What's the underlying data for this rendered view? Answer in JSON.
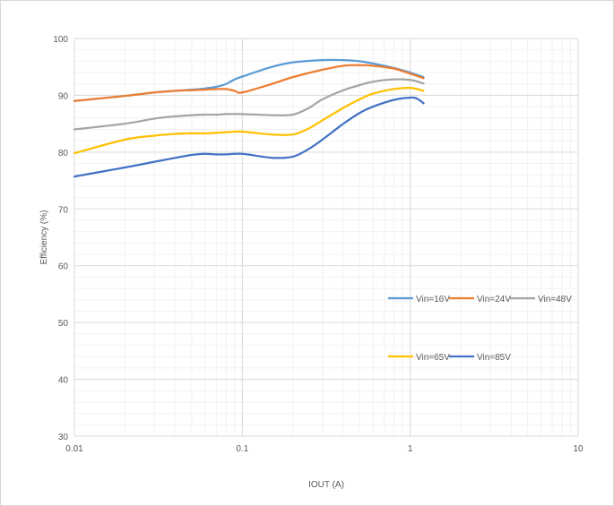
{
  "chart_data": {
    "type": "line",
    "title": "",
    "xlabel": "IOUT (A)",
    "ylabel": "Efficiency (%)",
    "x_scale": "log",
    "xlim": [
      0.01,
      10
    ],
    "ylim": [
      30,
      100
    ],
    "x_ticks": [
      {
        "value": 0.01,
        "label": "0.01"
      },
      {
        "value": 0.1,
        "label": "0.1"
      },
      {
        "value": 1,
        "label": "1"
      },
      {
        "value": 10,
        "label": "10"
      }
    ],
    "y_ticks": [
      {
        "value": 30,
        "label": "30"
      },
      {
        "value": 40,
        "label": "40"
      },
      {
        "value": 50,
        "label": "50"
      },
      {
        "value": 60,
        "label": "60"
      },
      {
        "value": 70,
        "label": "70"
      },
      {
        "value": 80,
        "label": "80"
      },
      {
        "value": 90,
        "label": "90"
      },
      {
        "value": 100,
        "label": "100"
      }
    ],
    "grid": true,
    "legend_position": "right",
    "series": [
      {
        "name": "Vin=16V",
        "color": "#5b9bd5",
        "x": [
          0.01,
          0.02,
          0.03,
          0.04,
          0.05,
          0.06,
          0.07,
          0.08,
          0.09,
          0.1,
          0.15,
          0.2,
          0.3,
          0.4,
          0.5,
          0.6,
          0.8,
          1.0,
          1.2
        ],
        "y": [
          89.0,
          89.9,
          90.5,
          90.8,
          91.0,
          91.2,
          91.5,
          92.0,
          92.8,
          93.3,
          95.0,
          95.8,
          96.2,
          96.2,
          96.0,
          95.6,
          94.8,
          94.0,
          93.2
        ]
      },
      {
        "name": "Vin=24V",
        "color": "#ed7d31",
        "x": [
          0.01,
          0.02,
          0.03,
          0.04,
          0.05,
          0.06,
          0.07,
          0.08,
          0.09,
          0.1,
          0.15,
          0.2,
          0.3,
          0.4,
          0.5,
          0.6,
          0.8,
          1.0,
          1.2
        ],
        "y": [
          89.0,
          89.9,
          90.5,
          90.8,
          90.9,
          91.0,
          91.1,
          91.1,
          90.8,
          90.5,
          92.0,
          93.2,
          94.5,
          95.2,
          95.3,
          95.2,
          94.7,
          93.8,
          93.0
        ]
      },
      {
        "name": "Vin=48V",
        "color": "#a5a5a5",
        "x": [
          0.01,
          0.02,
          0.03,
          0.04,
          0.05,
          0.06,
          0.07,
          0.08,
          0.1,
          0.15,
          0.2,
          0.25,
          0.3,
          0.4,
          0.5,
          0.6,
          0.8,
          1.0,
          1.2
        ],
        "y": [
          84.0,
          85.0,
          85.9,
          86.3,
          86.5,
          86.6,
          86.6,
          86.7,
          86.7,
          86.5,
          86.6,
          87.8,
          89.3,
          90.9,
          91.8,
          92.4,
          92.8,
          92.7,
          92.1
        ]
      },
      {
        "name": "Vin=65V",
        "color": "#ffc000",
        "x": [
          0.01,
          0.02,
          0.03,
          0.04,
          0.05,
          0.06,
          0.07,
          0.08,
          0.1,
          0.15,
          0.2,
          0.25,
          0.3,
          0.4,
          0.5,
          0.6,
          0.8,
          1.0,
          1.2
        ],
        "y": [
          79.8,
          82.2,
          82.9,
          83.2,
          83.3,
          83.3,
          83.4,
          83.5,
          83.6,
          83.1,
          83.1,
          84.2,
          85.6,
          87.8,
          89.3,
          90.3,
          91.1,
          91.3,
          90.8
        ]
      },
      {
        "name": "Vin=85V",
        "color": "#4472c4",
        "x": [
          0.01,
          0.02,
          0.03,
          0.04,
          0.05,
          0.06,
          0.07,
          0.08,
          0.1,
          0.15,
          0.2,
          0.25,
          0.3,
          0.4,
          0.5,
          0.6,
          0.8,
          1.0,
          1.1,
          1.2
        ],
        "y": [
          75.7,
          77.3,
          78.3,
          79.0,
          79.5,
          79.7,
          79.6,
          79.6,
          79.7,
          79.0,
          79.2,
          80.6,
          82.2,
          85.0,
          86.9,
          88.0,
          89.2,
          89.6,
          89.4,
          88.6
        ]
      }
    ]
  }
}
